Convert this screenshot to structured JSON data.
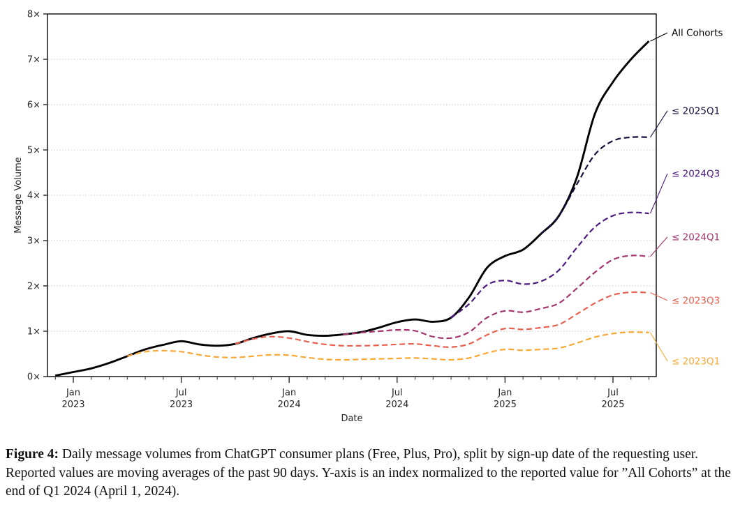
{
  "caption": {
    "label": "Figure 4:",
    "text": " Daily message volumes from ChatGPT consumer plans (Free, Plus, Pro), split by sign-up date of the requesting user. Reported values are moving averages of the past 90 days. Y-axis is an index normalized to the reported value for ”All Cohorts” at the end of Q1 2024 (April 1, 2024)."
  },
  "chart_data": {
    "type": "line",
    "title": "",
    "xlabel": "Date",
    "ylabel": "Message Volume",
    "ylim": [
      0,
      8
    ],
    "grid": "horizontal dotted gridlines at 1x-7x, full box spines",
    "axis_color": "#262626",
    "grid_color": "#c9c9c9",
    "legend_position": "right-of-plot end labels with leader lines",
    "y_tick_labels": [
      "0×",
      "1×",
      "2×",
      "3×",
      "4×",
      "5×",
      "6×",
      "7×",
      "8×"
    ],
    "x_start": "2022-12",
    "x_end": "2025-09",
    "x_major_ticks": [
      {
        "month": "2023-01",
        "line1": "Jan",
        "line2": "2023"
      },
      {
        "month": "2023-07",
        "line1": "Jul",
        "line2": "2023"
      },
      {
        "month": "2024-01",
        "line1": "Jan",
        "line2": "2024"
      },
      {
        "month": "2024-07",
        "line1": "Jul",
        "line2": "2024"
      },
      {
        "month": "2025-01",
        "line1": "Jan",
        "line2": "2025"
      },
      {
        "month": "2025-07",
        "line1": "Jul",
        "line2": "2025"
      }
    ],
    "series": [
      {
        "label": "All Cohorts",
        "color": "#000000",
        "style": "solid",
        "start": "2022-12",
        "values": [
          0.02,
          0.1,
          0.18,
          0.3,
          0.45,
          0.6,
          0.7,
          0.78,
          0.71,
          0.68,
          0.72,
          0.85,
          0.95,
          1.0,
          0.92,
          0.9,
          0.93,
          0.98,
          1.08,
          1.2,
          1.26,
          1.21,
          1.3,
          1.75,
          2.4,
          2.66,
          2.8,
          3.15,
          3.55,
          4.4,
          5.8,
          6.5,
          7.0,
          7.4
        ]
      },
      {
        "label": "≤ 2025Q1",
        "color": "#14103c",
        "style": "dashed",
        "start": "2025-03",
        "values": [
          3.15,
          3.55,
          4.25,
          4.9,
          5.2,
          5.28,
          5.28
        ]
      },
      {
        "label": "≤ 2024Q3",
        "color": "#4b1a7f",
        "style": "dashed",
        "start": "2024-10",
        "values": [
          1.3,
          1.6,
          2.02,
          2.12,
          2.04,
          2.1,
          2.35,
          2.85,
          3.3,
          3.55,
          3.62,
          3.6
        ]
      },
      {
        "label": "≤ 2024Q1",
        "color": "#a3346e",
        "style": "dashed",
        "start": "2024-04",
        "values": [
          0.93,
          0.97,
          1.0,
          1.03,
          1.01,
          0.88,
          0.85,
          0.98,
          1.3,
          1.45,
          1.42,
          1.5,
          1.62,
          1.95,
          2.3,
          2.58,
          2.67,
          2.65
        ]
      },
      {
        "label": "≤ 2023Q3",
        "color": "#e8604f",
        "style": "dashed",
        "start": "2023-10",
        "values": [
          0.72,
          0.83,
          0.88,
          0.85,
          0.77,
          0.71,
          0.68,
          0.68,
          0.69,
          0.71,
          0.72,
          0.68,
          0.65,
          0.72,
          0.92,
          1.06,
          1.04,
          1.08,
          1.15,
          1.38,
          1.62,
          1.8,
          1.86,
          1.85
        ]
      },
      {
        "label": "≤ 2023Q1",
        "color": "#f9a833",
        "style": "dashed",
        "start": "2023-04",
        "values": [
          0.45,
          0.55,
          0.57,
          0.55,
          0.48,
          0.43,
          0.42,
          0.45,
          0.48,
          0.47,
          0.42,
          0.38,
          0.37,
          0.38,
          0.39,
          0.4,
          0.41,
          0.39,
          0.37,
          0.41,
          0.52,
          0.6,
          0.58,
          0.6,
          0.63,
          0.74,
          0.87,
          0.95,
          0.98,
          0.97
        ]
      }
    ]
  }
}
